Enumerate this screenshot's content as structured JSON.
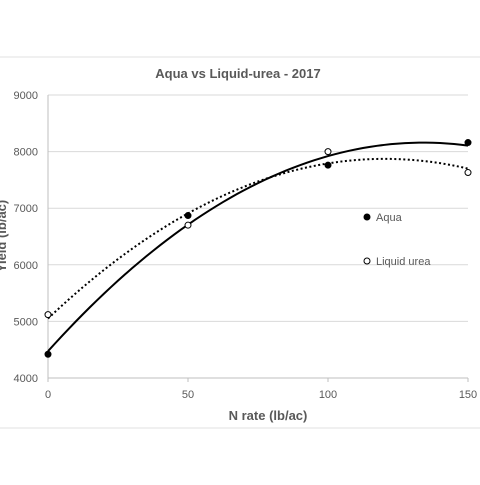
{
  "chart_data": {
    "type": "scatter",
    "title": "Aqua vs Liquid-urea - 2017",
    "xlabel": "N rate (lb/ac)",
    "ylabel": "Yield (lb/ac)",
    "xlim": [
      0,
      150
    ],
    "ylim": [
      4000,
      9000
    ],
    "xticks": [
      "0",
      "50",
      "100",
      "150"
    ],
    "yticks": [
      "4000",
      "5000",
      "6000",
      "7000",
      "8000",
      "9000"
    ],
    "grid": "horizontal",
    "legend_position": "right",
    "series": [
      {
        "name": "Aqua",
        "marker": "filled-circle",
        "trendline": "polynomial",
        "trendline_style": "solid",
        "color": "#000000",
        "x": [
          0,
          50,
          100,
          150
        ],
        "y": [
          4420,
          6870,
          7760,
          8160
        ]
      },
      {
        "name": "Liquid urea",
        "marker": "open-circle",
        "trendline": "polynomial",
        "trendline_style": "dotted",
        "color": "#000000",
        "x": [
          0,
          50,
          100,
          150
        ],
        "y": [
          5120,
          6700,
          8000,
          7630
        ]
      }
    ]
  }
}
